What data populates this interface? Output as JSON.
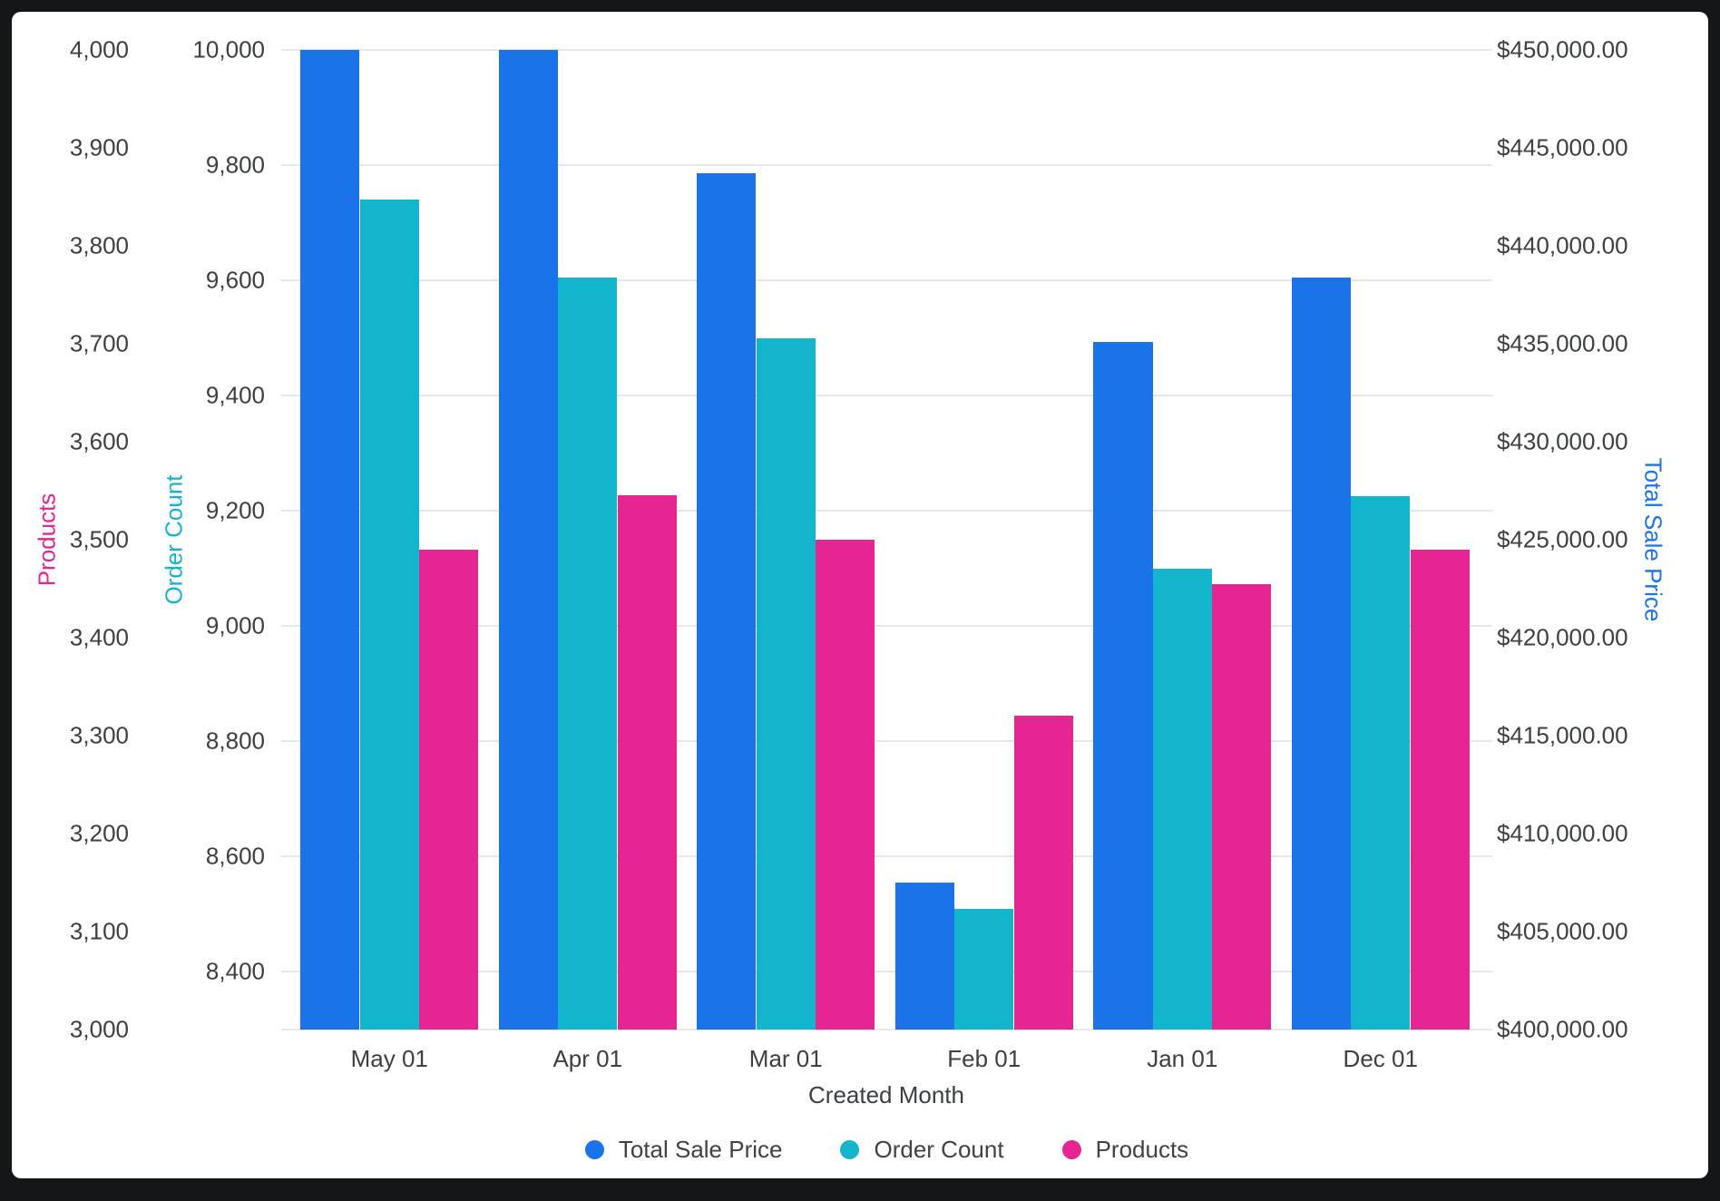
{
  "background": {
    "frame": "#141617",
    "card": "#FFFFFF"
  },
  "text_color": "#3C4043",
  "chart_data": {
    "type": "bar",
    "title": "",
    "xlabel": "Created Month",
    "categories": [
      "May 01",
      "Apr 01",
      "Mar 01",
      "Feb 01",
      "Jan 01",
      "Dec 01"
    ],
    "series": [
      {
        "name": "Total Sale Price",
        "axis": "price",
        "color": "#1A73E8",
        "values": [
          450000,
          450000,
          443700,
          407500,
          435100,
          438400
        ]
      },
      {
        "name": "Order Count",
        "axis": "orders",
        "color": "#12B5CB",
        "values": [
          9740,
          9605,
          9500,
          8510,
          9100,
          9225
        ]
      },
      {
        "name": "Products",
        "axis": "products",
        "color": "#E52592",
        "values": [
          3490,
          3545,
          3500,
          3320,
          3455,
          3490
        ]
      }
    ],
    "axes": {
      "products": {
        "label": "Products",
        "color": "#E52592",
        "min": 3000,
        "max": 4000,
        "side": "left-outer",
        "ticks": [
          {
            "v": 4000,
            "label": "4,000"
          },
          {
            "v": 3900,
            "label": "3,900"
          },
          {
            "v": 3800,
            "label": "3,800"
          },
          {
            "v": 3700,
            "label": "3,700"
          },
          {
            "v": 3600,
            "label": "3,600"
          },
          {
            "v": 3500,
            "label": "3,500"
          },
          {
            "v": 3400,
            "label": "3,400"
          },
          {
            "v": 3300,
            "label": "3,300"
          },
          {
            "v": 3200,
            "label": "3,200"
          },
          {
            "v": 3100,
            "label": "3,100"
          },
          {
            "v": 3000,
            "label": "3,000"
          }
        ]
      },
      "orders": {
        "label": "Order Count",
        "color": "#12B5CB",
        "min": 8300,
        "max": 10000,
        "side": "left-inner",
        "ticks": [
          {
            "v": 10000,
            "label": "10,000"
          },
          {
            "v": 9800,
            "label": "9,800"
          },
          {
            "v": 9600,
            "label": "9,600"
          },
          {
            "v": 9400,
            "label": "9,400"
          },
          {
            "v": 9200,
            "label": "9,200"
          },
          {
            "v": 9000,
            "label": "9,000"
          },
          {
            "v": 8800,
            "label": "8,800"
          },
          {
            "v": 8600,
            "label": "8,600"
          },
          {
            "v": 8400,
            "label": "8,400"
          }
        ]
      },
      "price": {
        "label": "Total Sale Price",
        "color": "#1A73E8",
        "min": 400000,
        "max": 450000,
        "side": "right",
        "ticks": [
          {
            "v": 450000,
            "label": "$450,000.00"
          },
          {
            "v": 445000,
            "label": "$445,000.00"
          },
          {
            "v": 440000,
            "label": "$440,000.00"
          },
          {
            "v": 435000,
            "label": "$435,000.00"
          },
          {
            "v": 430000,
            "label": "$430,000.00"
          },
          {
            "v": 425000,
            "label": "$425,000.00"
          },
          {
            "v": 420000,
            "label": "$420,000.00"
          },
          {
            "v": 415000,
            "label": "$415,000.00"
          },
          {
            "v": 410000,
            "label": "$410,000.00"
          },
          {
            "v": 405000,
            "label": "$405,000.00"
          },
          {
            "v": 400000,
            "label": "$400,000.00"
          }
        ]
      }
    },
    "grid": {
      "lines_at_axis": "orders",
      "color": "#E7E7E7",
      "orientation": "horizontal"
    },
    "legend": {
      "position": "bottom",
      "entries": [
        "Total Sale Price",
        "Order Count",
        "Products"
      ]
    }
  }
}
